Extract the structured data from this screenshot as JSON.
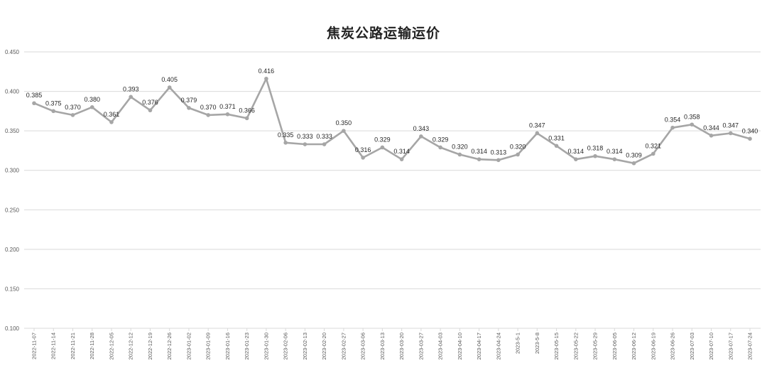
{
  "chart_data": {
    "type": "line",
    "title": "焦炭公路运输运价",
    "xlabel": "",
    "ylabel": "",
    "ylim": [
      0.1,
      0.45
    ],
    "yticks": [
      "0.100",
      "0.150",
      "0.200",
      "0.250",
      "0.300",
      "0.350",
      "0.400",
      "0.450"
    ],
    "grid": true,
    "legend": "none",
    "line_color": "#a6a6a6",
    "grid_color": "#d9d9d9",
    "categories": [
      "2022-11-07",
      "2022-11-14",
      "2022-11-21",
      "2022-11-28",
      "2022-12-05",
      "2022-12-12",
      "2022-12-19",
      "2022-12-26",
      "2023-01-02",
      "2023-01-09",
      "2023-01-16",
      "2023-01-23",
      "2023-01-30",
      "2023-02-06",
      "2023-02-13",
      "2023-02-20",
      "2023-02-27",
      "2023-03-06",
      "2023-03-13",
      "2023-03-20",
      "2023-03-27",
      "2023-04-03",
      "2023-04-10",
      "2023-04-17",
      "2023-04-24",
      "2023-5-1",
      "2023-5-8",
      "2023-05-15",
      "2023-05-22",
      "2023-05-29",
      "2023-06-05",
      "2023-06-12",
      "2023-06-19",
      "2023-06-26",
      "2023-07-03",
      "2023-07-10",
      "2023-07-17",
      "2023-07-24"
    ],
    "values": [
      0.385,
      0.375,
      0.37,
      0.38,
      0.361,
      0.393,
      0.376,
      0.405,
      0.379,
      0.37,
      0.371,
      0.366,
      0.416,
      0.335,
      0.333,
      0.333,
      0.35,
      0.316,
      0.329,
      0.314,
      0.343,
      0.329,
      0.32,
      0.314,
      0.313,
      0.32,
      0.347,
      0.331,
      0.314,
      0.318,
      0.314,
      0.309,
      0.321,
      0.354,
      0.358,
      0.344,
      0.347,
      0.34
    ],
    "data_labels": [
      "0.385",
      "0.375",
      "0.370",
      "0.380",
      "0.361",
      "0.393",
      "0.376",
      "0.405",
      "0.379",
      "0.370",
      "0.371",
      "0.366",
      "0.416",
      "0.335",
      "0.333",
      "0.333",
      "0.350",
      "0.316",
      "0.329",
      "0.314",
      "0.343",
      "0.329",
      "0.320",
      "0.314",
      "0.313",
      "0.320",
      "0.347",
      "0.331",
      "0.314",
      "0.318",
      "0.314",
      "0.309",
      "0.321",
      "0.354",
      "0.358",
      "0.344",
      "0.347",
      "0.340"
    ]
  }
}
